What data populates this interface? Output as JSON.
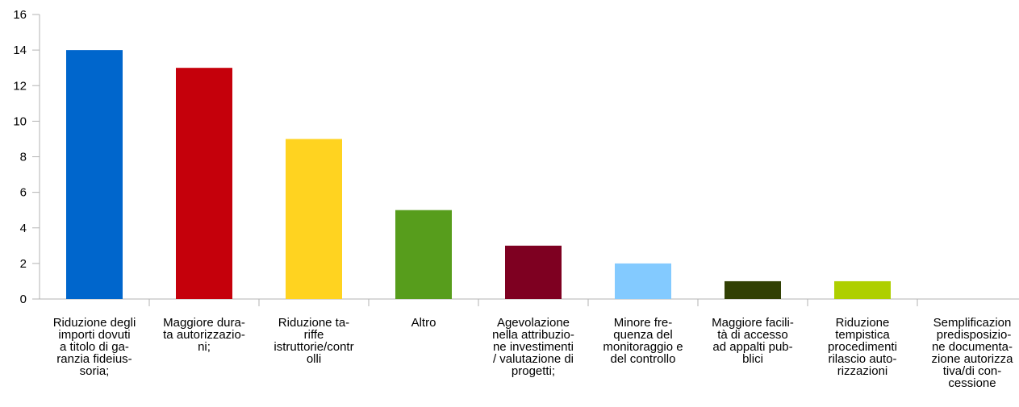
{
  "chart_data": {
    "type": "bar",
    "categories": [
      "Riduzione degli\nimporti dovuti\na titolo di ga-\nranzia fideius-\nsoria;",
      "Maggiore dura-\nta autorizzazio-\nni;",
      "Riduzione ta-\nriffe\nistruttorie/contr\nolli",
      "Altro",
      "Agevolazione\nnella attribuzio-\nne investimenti\n/ valutazione di\nprogetti;",
      "Minore fre-\nquenza del\nmonitoraggio e\ndel controllo",
      "Maggiore facili-\ntà di accesso\nad appalti pub-\nblici",
      "Riduzione\ntempistica\nprocedimenti\nrilascio auto-\nrizzazioni",
      "Semplificazion\n predisposizio-\nne documenta-\nzione autorizza\ntiva/di con-\ncessione"
    ],
    "values": [
      14,
      13,
      9,
      5,
      3,
      2,
      1,
      1,
      0
    ],
    "colors": [
      "#0066cc",
      "#c5000b",
      "#ffd320",
      "#579d1c",
      "#7e0021",
      "#83caff",
      "#314004",
      "#aecf00",
      "#ff420e"
    ],
    "ylim": [
      0,
      16
    ],
    "yticks": [
      0,
      2,
      4,
      6,
      8,
      10,
      12,
      14,
      16
    ],
    "grid": false
  }
}
